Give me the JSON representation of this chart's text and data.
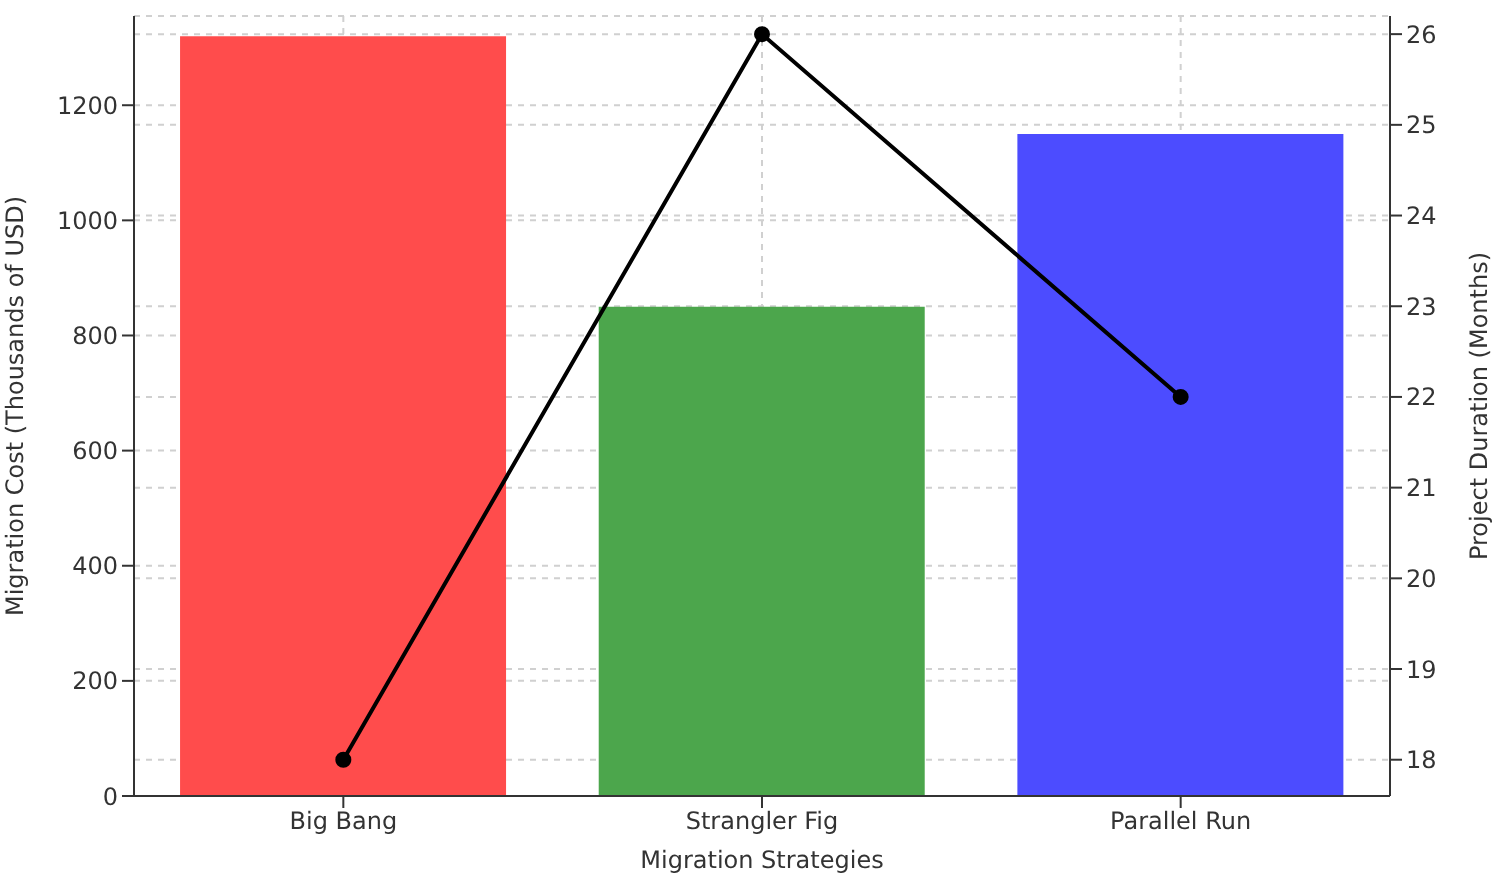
{
  "chart_data": {
    "type": "bar",
    "xlabel": "Migration Strategies",
    "ylabel": "Migration Cost (Thousands of USD)",
    "y2label": "Project Duration (Months)",
    "categories": [
      "Big Bang",
      "Strangler Fig",
      "Parallel Run"
    ],
    "series": [
      {
        "colors": [
          "#ff4c4c",
          "#4ca64c",
          "#4c4cff"
        ],
        "values": [
          1320,
          850,
          1150
        ]
      },
      {
        "type": "line",
        "axis": "y2",
        "color": "#000000",
        "marker": "circle",
        "values": [
          18,
          26,
          22
        ]
      }
    ],
    "ylim": [
      0,
      1355
    ],
    "yticks": [
      0,
      200,
      400,
      600,
      800,
      1000,
      1200
    ],
    "y2lim": [
      17.6,
      26.2
    ],
    "y2ticks": [
      18,
      19,
      20,
      21,
      22,
      23,
      24,
      25,
      26
    ],
    "grid": true,
    "legend": false
  }
}
